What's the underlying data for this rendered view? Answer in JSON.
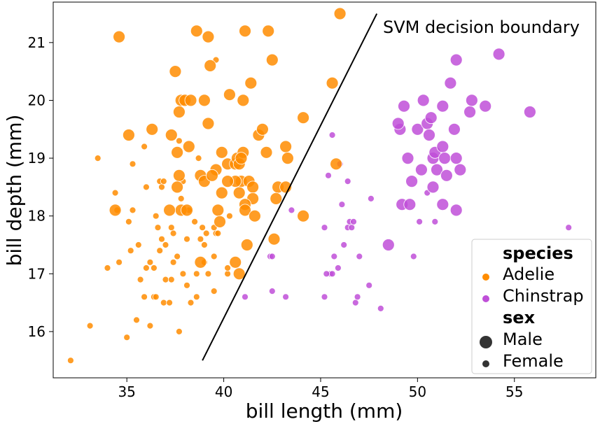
{
  "chart_data": {
    "type": "scatter",
    "xlabel": "bill length (mm)",
    "ylabel": "bill depth (mm)",
    "xlim": [
      31.2,
      59.2
    ],
    "ylim": [
      15.2,
      21.7
    ],
    "xticks": [
      35,
      40,
      45,
      50,
      55
    ],
    "yticks": [
      16,
      17,
      18,
      19,
      20,
      21
    ],
    "grid": false,
    "annotation": {
      "text": "SVM decision boundary"
    },
    "boundary_line": {
      "x": [
        38.9,
        47.9
      ],
      "y": [
        15.5,
        21.5
      ]
    },
    "legend": {
      "placement": "bottom-right",
      "species_title": "species",
      "sex_title": "sex",
      "species_entries": [
        "Adelie",
        "Chinstrap"
      ],
      "sex_entries": [
        "Male",
        "Female"
      ]
    },
    "colors": {
      "Adelie": "#ff8c00",
      "Chinstrap": "#bf4fd8"
    },
    "series": [
      {
        "name": "Adelie",
        "sex": "Male",
        "points": [
          [
            34.6,
            21.1
          ],
          [
            38.6,
            21.2
          ],
          [
            39.2,
            21.1
          ],
          [
            41.1,
            21.2
          ],
          [
            42.3,
            21.2
          ],
          [
            46.0,
            21.5
          ],
          [
            37.8,
            20.0
          ],
          [
            39.3,
            20.6
          ],
          [
            42.5,
            20.7
          ],
          [
            37.5,
            20.5
          ],
          [
            38.0,
            20.0
          ],
          [
            38.3,
            20.0
          ],
          [
            39.0,
            20.0
          ],
          [
            40.3,
            20.1
          ],
          [
            41.0,
            20.0
          ],
          [
            41.4,
            20.3
          ],
          [
            45.6,
            20.3
          ],
          [
            35.1,
            19.4
          ],
          [
            36.3,
            19.5
          ],
          [
            37.3,
            19.4
          ],
          [
            37.7,
            19.8
          ],
          [
            38.2,
            19.2
          ],
          [
            39.2,
            19.6
          ],
          [
            39.9,
            19.1
          ],
          [
            41.8,
            19.4
          ],
          [
            42.0,
            19.5
          ],
          [
            42.2,
            19.1
          ],
          [
            43.2,
            19.2
          ],
          [
            44.1,
            19.7
          ],
          [
            37.6,
            19.1
          ],
          [
            37.7,
            18.7
          ],
          [
            38.8,
            18.7
          ],
          [
            39.0,
            18.6
          ],
          [
            39.6,
            18.8
          ],
          [
            39.9,
            18.4
          ],
          [
            40.2,
            18.9
          ],
          [
            40.6,
            18.9
          ],
          [
            40.7,
            19.0
          ],
          [
            41.0,
            19.1
          ],
          [
            40.8,
            18.9
          ],
          [
            40.9,
            18.6
          ],
          [
            41.3,
            18.6
          ],
          [
            41.5,
            18.5
          ],
          [
            42.8,
            18.5
          ],
          [
            43.2,
            18.5
          ],
          [
            43.3,
            19.0
          ],
          [
            42.7,
            18.3
          ],
          [
            41.5,
            18.3
          ],
          [
            41.1,
            18.2
          ],
          [
            40.6,
            18.6
          ],
          [
            40.8,
            18.4
          ],
          [
            37.6,
            18.5
          ],
          [
            37.8,
            18.1
          ],
          [
            38.1,
            18.1
          ],
          [
            37.2,
            18.1
          ],
          [
            34.4,
            18.1
          ],
          [
            39.7,
            18.1
          ],
          [
            39.8,
            17.9
          ],
          [
            41.1,
            18.1
          ],
          [
            41.6,
            18.0
          ],
          [
            44.1,
            18.0
          ],
          [
            42.6,
            17.6
          ],
          [
            41.2,
            17.5
          ],
          [
            38.8,
            17.2
          ],
          [
            40.6,
            17.2
          ],
          [
            40.8,
            17.0
          ],
          [
            45.8,
            18.9
          ],
          [
            40.9,
            19.0
          ],
          [
            40.2,
            18.6
          ],
          [
            39.4,
            18.7
          ]
        ]
      },
      {
        "name": "Adelie",
        "sex": "Female",
        "points": [
          [
            32.1,
            15.5
          ],
          [
            33.1,
            16.1
          ],
          [
            35.0,
            15.9
          ],
          [
            35.5,
            16.2
          ],
          [
            37.7,
            16.0
          ],
          [
            34.0,
            17.1
          ],
          [
            33.5,
            19.0
          ],
          [
            34.5,
            18.1
          ],
          [
            34.4,
            18.4
          ],
          [
            35.3,
            18.9
          ],
          [
            35.9,
            19.2
          ],
          [
            36.0,
            18.5
          ],
          [
            36.2,
            17.2
          ],
          [
            36.4,
            17.1
          ],
          [
            36.5,
            18.0
          ],
          [
            36.6,
            17.8
          ],
          [
            36.7,
            18.6
          ],
          [
            36.8,
            18.5
          ],
          [
            36.9,
            18.6
          ],
          [
            37.0,
            16.9
          ],
          [
            37.3,
            17.8
          ],
          [
            37.4,
            17.7
          ],
          [
            37.6,
            17.3
          ],
          [
            37.8,
            18.3
          ],
          [
            37.9,
            18.6
          ],
          [
            38.1,
            17.6
          ],
          [
            38.2,
            18.1
          ],
          [
            38.5,
            17.9
          ],
          [
            38.6,
            17.0
          ],
          [
            38.7,
            19.0
          ],
          [
            38.9,
            17.8
          ],
          [
            39.0,
            17.5
          ],
          [
            39.1,
            17.7
          ],
          [
            39.5,
            16.7
          ],
          [
            39.6,
            17.7
          ],
          [
            39.7,
            17.7
          ],
          [
            40.2,
            17.0
          ],
          [
            40.3,
            18.0
          ],
          [
            35.7,
            16.9
          ],
          [
            35.9,
            16.6
          ],
          [
            36.2,
            16.1
          ],
          [
            36.4,
            16.6
          ],
          [
            36.9,
            16.5
          ],
          [
            35.2,
            17.4
          ],
          [
            34.6,
            17.2
          ],
          [
            35.1,
            17.9
          ],
          [
            35.6,
            17.5
          ],
          [
            36.0,
            17.1
          ],
          [
            36.5,
            16.6
          ],
          [
            37.2,
            16.5
          ],
          [
            37.9,
            17.0
          ],
          [
            38.3,
            16.5
          ],
          [
            37.3,
            16.9
          ],
          [
            38.8,
            17.6
          ],
          [
            39.2,
            17.0
          ],
          [
            39.5,
            17.8
          ],
          [
            37.4,
            17.2
          ],
          [
            36.7,
            17.4
          ],
          [
            37.0,
            17.5
          ],
          [
            38.1,
            16.8
          ],
          [
            35.3,
            18.1
          ],
          [
            36.8,
            17.6
          ],
          [
            37.7,
            19.3
          ],
          [
            39.5,
            17.3
          ],
          [
            38.6,
            16.6
          ],
          [
            40.2,
            17.1
          ],
          [
            39.6,
            20.7
          ],
          [
            39.0,
            17.2
          ]
        ]
      },
      {
        "name": "Chinstrap",
        "sex": "Male",
        "points": [
          [
            49.1,
            19.5
          ],
          [
            49.3,
            19.9
          ],
          [
            49.5,
            19.0
          ],
          [
            49.7,
            18.6
          ],
          [
            50.0,
            19.5
          ],
          [
            50.2,
            18.8
          ],
          [
            50.3,
            20.0
          ],
          [
            50.5,
            19.6
          ],
          [
            50.6,
            19.4
          ],
          [
            50.7,
            19.7
          ],
          [
            50.8,
            18.5
          ],
          [
            50.8,
            19.0
          ],
          [
            50.9,
            19.1
          ],
          [
            51.0,
            18.8
          ],
          [
            51.3,
            19.2
          ],
          [
            51.3,
            19.9
          ],
          [
            51.4,
            19.0
          ],
          [
            51.5,
            18.7
          ],
          [
            51.7,
            20.3
          ],
          [
            51.9,
            19.5
          ],
          [
            52.0,
            18.1
          ],
          [
            52.0,
            19.0
          ],
          [
            52.0,
            20.7
          ],
          [
            52.2,
            18.8
          ],
          [
            52.7,
            19.8
          ],
          [
            52.8,
            20.0
          ],
          [
            53.5,
            19.9
          ],
          [
            54.2,
            20.8
          ],
          [
            55.8,
            19.8
          ],
          [
            49.0,
            19.6
          ],
          [
            49.2,
            18.2
          ],
          [
            49.6,
            18.2
          ],
          [
            51.3,
            18.2
          ],
          [
            48.5,
            17.5
          ]
        ]
      },
      {
        "name": "Chinstrap",
        "sex": "Female",
        "points": [
          [
            45.2,
            16.6
          ],
          [
            45.4,
            18.7
          ],
          [
            45.5,
            17.0
          ],
          [
            45.6,
            19.4
          ],
          [
            45.7,
            17.3
          ],
          [
            45.9,
            17.1
          ],
          [
            46.0,
            18.9
          ],
          [
            46.1,
            18.2
          ],
          [
            46.2,
            17.5
          ],
          [
            46.4,
            17.8
          ],
          [
            46.4,
            18.6
          ],
          [
            46.5,
            17.9
          ],
          [
            46.6,
            17.8
          ],
          [
            46.7,
            17.9
          ],
          [
            46.8,
            16.5
          ],
          [
            46.9,
            16.6
          ],
          [
            47.0,
            17.3
          ],
          [
            47.5,
            16.8
          ],
          [
            47.6,
            18.3
          ],
          [
            48.1,
            16.4
          ],
          [
            49.8,
            17.3
          ],
          [
            50.1,
            17.9
          ],
          [
            50.5,
            18.4
          ],
          [
            50.9,
            17.9
          ],
          [
            57.8,
            17.8
          ],
          [
            43.2,
            16.6
          ],
          [
            42.4,
            17.3
          ],
          [
            42.5,
            16.7
          ],
          [
            41.1,
            16.6
          ],
          [
            45.2,
            17.8
          ],
          [
            45.6,
            17.0
          ],
          [
            45.3,
            17.0
          ],
          [
            43.5,
            18.1
          ],
          [
            42.5,
            17.3
          ]
        ]
      }
    ]
  }
}
